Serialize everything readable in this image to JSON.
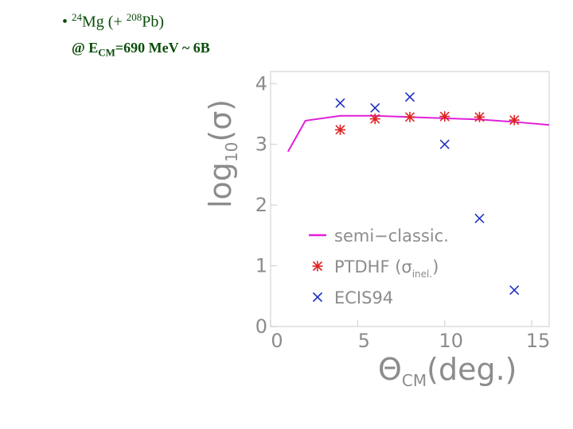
{
  "header": {
    "line1": [
      "•",
      "24",
      "Mg (+",
      "208",
      "Pb)"
    ],
    "line2": [
      "@ E",
      "CM",
      "=690 MeV ~ 6B"
    ]
  },
  "chart_data": {
    "type": "line",
    "xlabel": [
      "Θ",
      "CM",
      "(deg.)"
    ],
    "ylabel": [
      "log",
      "10",
      "(σ)"
    ],
    "xlim": [
      0,
      16
    ],
    "ylim": [
      0,
      4.2
    ],
    "xticks": [
      0,
      5,
      10,
      15
    ],
    "yticks": [
      0,
      1,
      2,
      3,
      4
    ],
    "legend": "lower right",
    "series": [
      {
        "name": [
          "semi−classic."
        ],
        "mark": "line",
        "color": "#e020d8",
        "x": [
          1,
          2,
          4,
          6,
          8,
          10,
          12,
          14,
          16
        ],
        "values": [
          2.88,
          3.39,
          3.47,
          3.47,
          3.45,
          3.43,
          3.41,
          3.37,
          3.32
        ]
      },
      {
        "name": [
          "PTDHF (σ",
          "inel.",
          ")"
        ],
        "mark": "asterisk",
        "color": "#e02020",
        "x": [
          4,
          6,
          8,
          10,
          12,
          14
        ],
        "values": [
          3.24,
          3.42,
          3.45,
          3.46,
          3.45,
          3.4
        ]
      },
      {
        "name": [
          "ECIS94"
        ],
        "mark": "cross",
        "color": "#2030c0",
        "x": [
          4,
          6,
          8,
          10,
          12,
          14
        ],
        "values": [
          3.68,
          3.6,
          3.78,
          3.0,
          1.78,
          0.6
        ]
      }
    ]
  }
}
